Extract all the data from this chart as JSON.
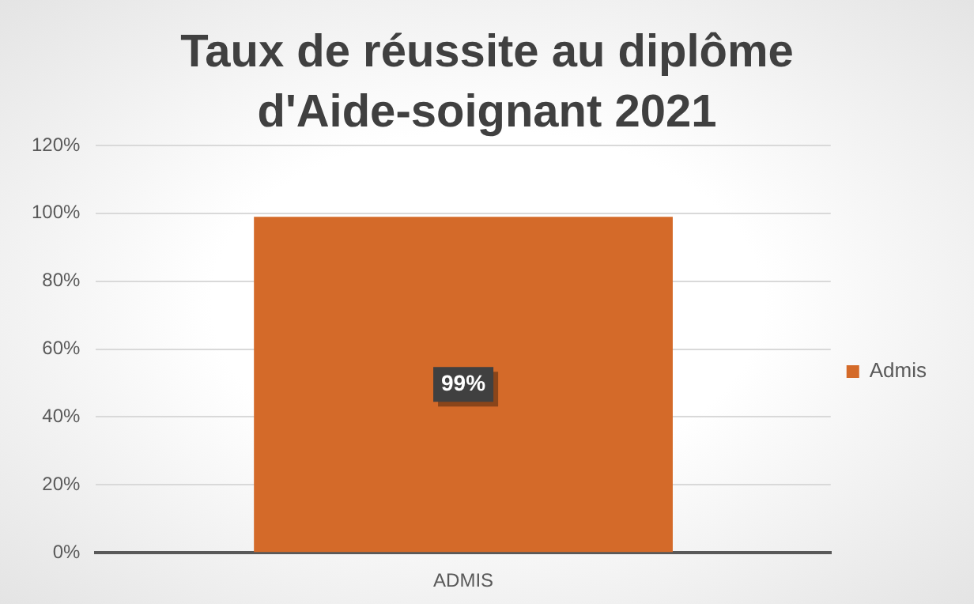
{
  "chart_data": {
    "type": "bar",
    "title": "Taux de réussite au diplôme d'Aide-soignant 2021",
    "categories": [
      "ADMIS"
    ],
    "series": [
      {
        "name": "Admis",
        "color": "#d46a29",
        "values": [
          99
        ],
        "value_labels": [
          "99%"
        ]
      }
    ],
    "ylim": [
      0,
      120
    ],
    "yticks": [
      {
        "value": 0,
        "label": "0%"
      },
      {
        "value": 20,
        "label": "20%"
      },
      {
        "value": 40,
        "label": "40%"
      },
      {
        "value": 60,
        "label": "60%"
      },
      {
        "value": 80,
        "label": "80%"
      },
      {
        "value": 100,
        "label": "100%"
      },
      {
        "value": 120,
        "label": "120%"
      }
    ],
    "grid": "y",
    "legend": "right"
  }
}
